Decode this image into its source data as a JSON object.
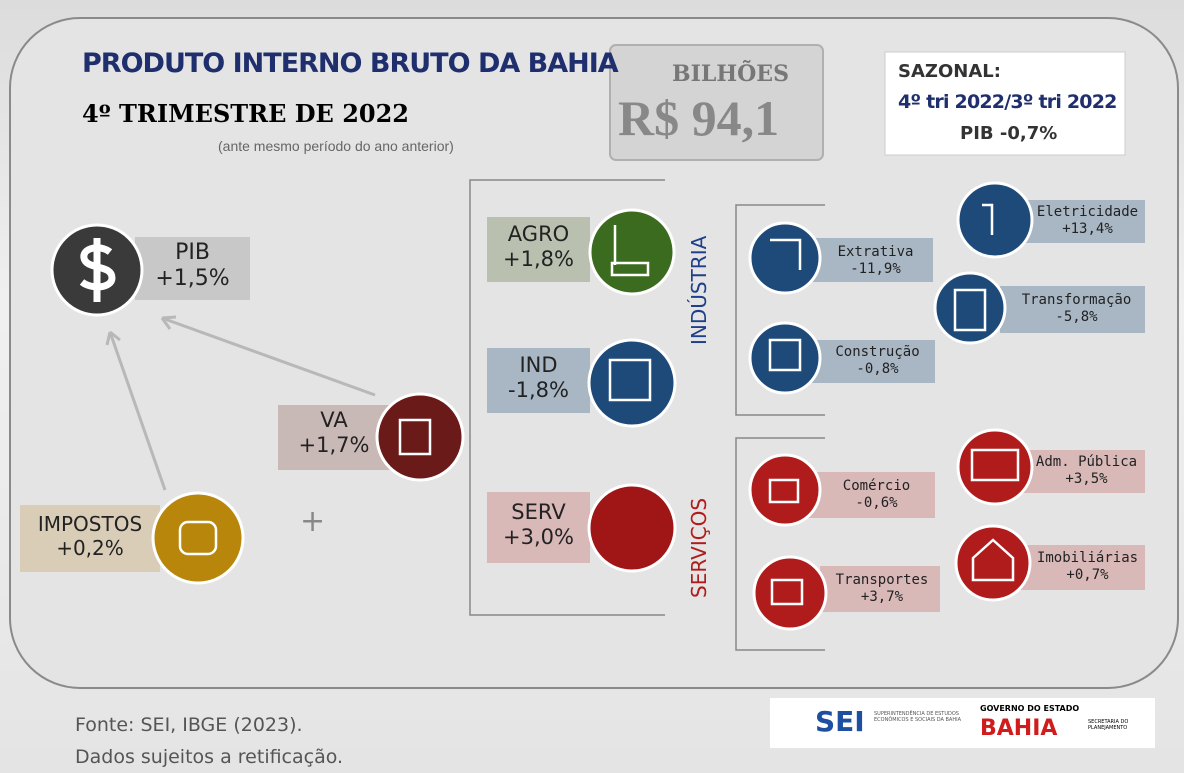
{
  "header": {
    "title": "PRODUTO INTERNO BRUTO DA BAHIA",
    "subtitle": "4º TRIMESTRE DE 2022",
    "note": "(ante mesmo período do ano anterior)"
  },
  "total": {
    "unit": "BILHÕES",
    "value": "R$ 94,1"
  },
  "seasonal": {
    "label": "SAZONAL:",
    "period": "4º tri 2022/3º tri 2022",
    "value": "PIB -0,7%"
  },
  "pib": {
    "label": "PIB",
    "value": "+1,5%"
  },
  "va": {
    "label": "VA",
    "value": "+1,7%"
  },
  "impostos": {
    "label": "IMPOSTOS",
    "value": "+0,2%"
  },
  "plus": "+",
  "sectors": [
    {
      "label": "AGRO",
      "value": "+1,8%"
    },
    {
      "label": "IND",
      "value": "-1,8%"
    },
    {
      "label": "SERV",
      "value": "+3,0%"
    }
  ],
  "industria": {
    "title": "INDÚSTRIA",
    "items": [
      {
        "label": "Extrativa",
        "value": "-11,9%"
      },
      {
        "label": "Construção",
        "value": "-0,8%"
      },
      {
        "label": "Eletricidade",
        "value": "+13,4%"
      },
      {
        "label": "Transformação",
        "value": "-5,8%"
      }
    ]
  },
  "servicos": {
    "title": "SERVIÇOS",
    "items": [
      {
        "label": "Comércio",
        "value": "-0,6%"
      },
      {
        "label": "Transportes",
        "value": "+3,7%"
      },
      {
        "label": "Adm. Pública",
        "value": "+3,5%"
      },
      {
        "label": "Imobiliárias",
        "value": "+0,7%"
      }
    ]
  },
  "footer": {
    "source": "Fonte: SEI, IBGE (2023).",
    "disclaimer": "Dados sujeitos a retificação."
  },
  "logos": {
    "sei": "SEI",
    "sei_name": "SUPERINTENDÊNCIA DE ESTUDOS ECONÔMICOS E SOCIAIS DA BAHIA",
    "gov": "GOVERNO DO ESTADO",
    "bahia": "BAHIA",
    "secretaria": "SECRETARIA DO PLANEJAMENTO"
  }
}
